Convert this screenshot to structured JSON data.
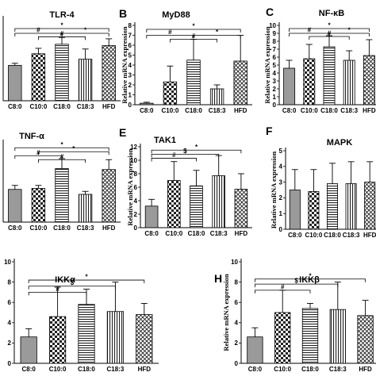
{
  "chart_data": [
    {
      "id": "tlr4",
      "letter": "",
      "type": "bar",
      "title": "TLR-4",
      "ylabel": "",
      "categories": [
        "C8:0",
        "C10:0",
        "C18:0",
        "C18:3",
        "HFD"
      ],
      "values": [
        5.2,
        6.9,
        8.3,
        6.1,
        8.1
      ],
      "errors": [
        0.3,
        0.8,
        1.0,
        1.5,
        1.0
      ],
      "ylim": [
        0,
        12
      ],
      "yticks": [],
      "show_xticks": true,
      "annotations": [
        {
          "from": 0,
          "to": 4,
          "level": 10.6,
          "label": "*"
        },
        {
          "from": 0,
          "to": 2,
          "level": 9.9,
          "label": "#"
        },
        {
          "from": 1,
          "to": 3,
          "level": 9.4,
          "label": "#"
        },
        {
          "from": 2,
          "to": 4,
          "level": 9.9,
          "label": "*"
        }
      ]
    },
    {
      "id": "myd88",
      "letter": "B",
      "type": "bar",
      "title": "MyD88",
      "ylabel": "Relative mRNA expression",
      "categories": [
        "C8:0",
        "C10:0",
        "C18:0",
        "C18:3",
        "HFD"
      ],
      "values": [
        0.15,
        2.3,
        4.5,
        1.6,
        4.4
      ],
      "errors": [
        0.1,
        1.6,
        2.1,
        0.4,
        2.6
      ],
      "ylim": [
        0,
        8
      ],
      "yticks": [
        0,
        1,
        2,
        3,
        4,
        5,
        6,
        7,
        8
      ],
      "show_xticks": true,
      "annotations": [
        {
          "from": 0,
          "to": 4,
          "level": 7.6,
          "label": "*"
        },
        {
          "from": 0,
          "to": 2,
          "level": 7.0,
          "label": "#"
        },
        {
          "from": 1,
          "to": 3,
          "level": 6.6,
          "label": "#"
        },
        {
          "from": 2,
          "to": 4,
          "level": 7.0,
          "label": "*"
        }
      ]
    },
    {
      "id": "nfkb",
      "letter": "C",
      "type": "bar",
      "title": "NF-κB",
      "ylabel": "Relative mRNA expression",
      "categories": [
        "C8:0",
        "C10:0",
        "C18:0",
        "C18:3",
        "HFD"
      ],
      "values": [
        4.6,
        5.8,
        7.3,
        5.6,
        6.2
      ],
      "errors": [
        1.0,
        1.8,
        1.4,
        1.2,
        2.0
      ],
      "ylim": [
        0,
        10
      ],
      "yticks": [
        0,
        1,
        2,
        3,
        4,
        5,
        6,
        7,
        8,
        9,
        10
      ],
      "show_xticks": true,
      "annotations": [
        {
          "from": 0,
          "to": 4,
          "level": 9.6,
          "label": "*"
        },
        {
          "from": 0,
          "to": 2,
          "level": 9.0,
          "label": "#"
        },
        {
          "from": 1,
          "to": 3,
          "level": 8.6,
          "label": "#"
        },
        {
          "from": 2,
          "to": 4,
          "level": 9.0,
          "label": "*"
        }
      ]
    },
    {
      "id": "tnfa",
      "letter": "",
      "type": "bar",
      "title": "TNF-α",
      "ylabel": "",
      "categories": [
        "C8:0",
        "C10:0",
        "C18:0",
        "C18:3",
        "HFD"
      ],
      "values": [
        3.3,
        3.4,
        5.4,
        2.8,
        5.3
      ],
      "errors": [
        0.4,
        0.3,
        1.0,
        0.3,
        1.0
      ],
      "ylim": [
        0,
        8
      ],
      "yticks": [],
      "show_xticks": true,
      "annotations": [
        {
          "from": 0,
          "to": 4,
          "level": 7.5,
          "label": "*"
        },
        {
          "from": 1,
          "to": 4,
          "level": 7.1,
          "label": "*"
        },
        {
          "from": 0,
          "to": 2,
          "level": 6.7,
          "label": "#"
        },
        {
          "from": 1,
          "to": 3,
          "level": 6.3,
          "label": "#"
        }
      ]
    },
    {
      "id": "tak1",
      "letter": "E",
      "type": "bar",
      "title": "TAK1",
      "ylabel": "Relative mRNA expression",
      "categories": [
        "C8:0",
        "C10:0",
        "C18:0",
        "C18:3",
        "HFD"
      ],
      "values": [
        3.2,
        7.0,
        6.2,
        7.7,
        5.7
      ],
      "errors": [
        1.0,
        2.8,
        2.3,
        3.0,
        2.3
      ],
      "ylim": [
        0,
        12
      ],
      "yticks": [
        0,
        2,
        4,
        6,
        8,
        10,
        12
      ],
      "show_xticks": true,
      "annotations": [
        {
          "from": 0,
          "to": 4,
          "level": 11.5,
          "label": "*"
        },
        {
          "from": 0,
          "to": 3,
          "level": 10.9,
          "label": "$"
        },
        {
          "from": 0,
          "to": 2,
          "level": 10.3,
          "label": "#"
        }
      ]
    },
    {
      "id": "mapk",
      "letter": "F",
      "type": "bar",
      "title": "MAPK",
      "ylabel": "Relative mRNA expression",
      "categories": [
        "C8:0",
        "C10:0",
        "C18:0",
        "C18:3",
        "HFD"
      ],
      "values": [
        2.5,
        2.4,
        2.9,
        2.9,
        3.0
      ],
      "errors": [
        1.3,
        1.4,
        1.3,
        1.4,
        1.3
      ],
      "ylim": [
        0,
        5
      ],
      "yticks": [
        0,
        1,
        2,
        3,
        4,
        5
      ],
      "show_xticks": true,
      "annotations": []
    },
    {
      "id": "ikka",
      "letter": "",
      "type": "bar",
      "title": "IKKα",
      "ylabel": "",
      "categories": [
        "C8:0",
        "C10:0",
        "C18:0",
        "C18:3",
        "HFD"
      ],
      "values": [
        2.6,
        4.6,
        5.8,
        5.1,
        4.8
      ],
      "errors": [
        0.8,
        2.9,
        1.5,
        2.9,
        1.1
      ],
      "ylim": [
        0,
        10
      ],
      "yticks": [
        0,
        2,
        4,
        6,
        8,
        10
      ],
      "show_xticks": true,
      "annotations": [
        {
          "from": 0,
          "to": 4,
          "level": 8.2,
          "label": "*"
        },
        {
          "from": 0,
          "to": 3,
          "level": 7.6,
          "label": "$"
        },
        {
          "from": 0,
          "to": 2,
          "level": 7.0,
          "label": "#"
        }
      ]
    },
    {
      "id": "ikkb",
      "letter": "H",
      "type": "bar",
      "title": "IKKβ",
      "ylabel": "Relative mRNA expression",
      "categories": [
        "C8:0",
        "C10:0",
        "C18:0",
        "C18:3",
        "HFD"
      ],
      "values": [
        2.6,
        5.0,
        5.4,
        5.3,
        4.7
      ],
      "errors": [
        0.9,
        2.2,
        0.5,
        2.7,
        1.5
      ],
      "ylim": [
        0,
        10
      ],
      "yticks": [
        0,
        2,
        4,
        6,
        8,
        10
      ],
      "show_xticks": true,
      "annotations": [
        {
          "from": 0,
          "to": 4,
          "level": 8.3,
          "label": "*"
        },
        {
          "from": 0,
          "to": 3,
          "level": 7.8,
          "label": "$"
        },
        {
          "from": 0,
          "to": 2,
          "level": 7.2,
          "label": "#"
        }
      ]
    }
  ]
}
